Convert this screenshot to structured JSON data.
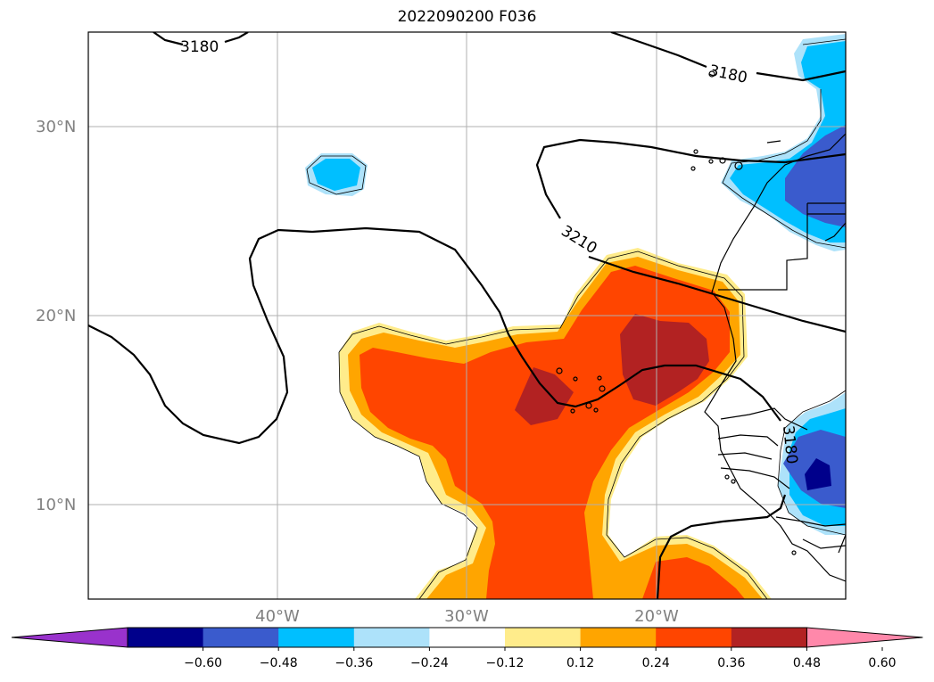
{
  "title": "2022090200 F036",
  "axes": {
    "lat_labels": [
      "30°N",
      "20°N",
      "10°N"
    ],
    "lon_labels": [
      "40°W",
      "30°W",
      "20°W"
    ]
  },
  "contour_labels": [
    "3180",
    "3180",
    "3210",
    "3180"
  ],
  "colorbar": {
    "ticks": [
      "−0.60",
      "−0.48",
      "−0.36",
      "−0.24",
      "−0.12",
      "0.12",
      "0.24",
      "0.36",
      "0.48",
      "0.60"
    ],
    "colors": [
      "#9932CC",
      "#00008B",
      "#3A5BCD",
      "#00BFFF",
      "#ADE2FA",
      "#FFFFFF",
      "#FFEC8B",
      "#FFA500",
      "#FF4500",
      "#B22222",
      "#FF88AA"
    ]
  }
}
